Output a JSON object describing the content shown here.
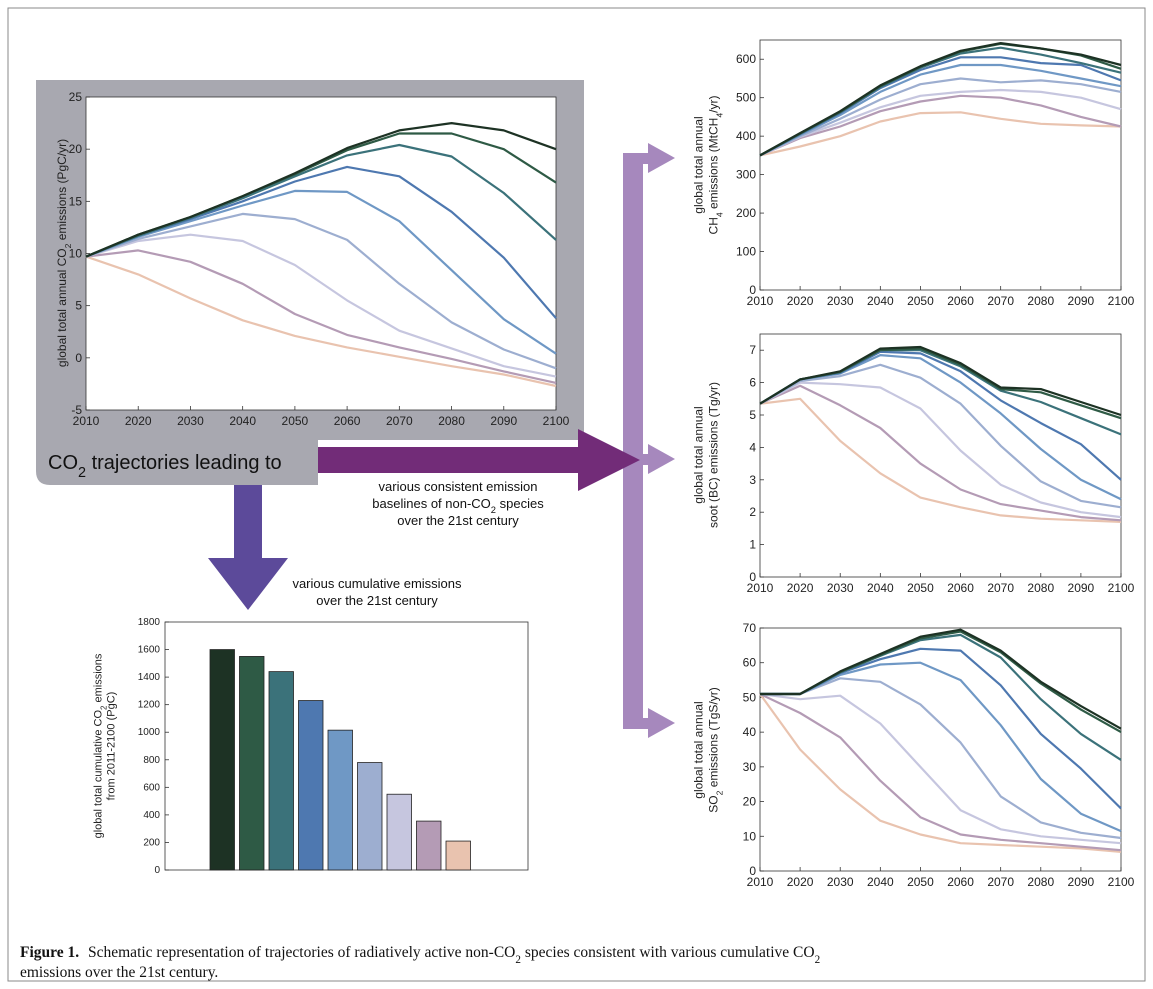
{
  "figure": {
    "caption_label": "Figure 1.",
    "caption_line1": "Schematic representation of trajectories of radiatively active non-CO2 species consistent with various cumulative CO2",
    "caption_line2": "emissions over the 21st century.",
    "box_label": "CO2 trajectories  leading to",
    "arrow_right_note": [
      "various consistent emission",
      "baselines of non-CO2 species",
      "over the 21st century"
    ],
    "arrow_down_note": [
      "various cumulative emissions",
      "over the 21st century"
    ]
  },
  "palette": [
    "#1d3224",
    "#2e5a45",
    "#3b727a",
    "#4e78b0",
    "#6f98c5",
    "#9daed0",
    "#c6c6df",
    "#b49bb5",
    "#e9c3af"
  ],
  "chart_data": [
    {
      "id": "co2",
      "type": "line",
      "ylabel": [
        "global total annual CO2 emissions (PgC/yr)"
      ],
      "x": [
        2010,
        2020,
        2030,
        2040,
        2050,
        2060,
        2070,
        2080,
        2090,
        2100
      ],
      "xticks": [
        2010,
        2020,
        2030,
        2040,
        2050,
        2060,
        2070,
        2080,
        2090,
        2100
      ],
      "yticks": [
        -5,
        0,
        5,
        10,
        15,
        20,
        25
      ],
      "ylim": [
        -5,
        25
      ],
      "series": [
        {
          "values": [
            9.7,
            11.8,
            13.5,
            15.5,
            17.7,
            20.1,
            21.8,
            22.5,
            21.8,
            20.0
          ]
        },
        {
          "values": [
            9.7,
            11.8,
            13.5,
            15.5,
            17.6,
            19.9,
            21.5,
            21.5,
            20.0,
            16.8
          ]
        },
        {
          "values": [
            9.7,
            11.7,
            13.4,
            15.3,
            17.4,
            19.4,
            20.4,
            19.3,
            15.8,
            11.3
          ]
        },
        {
          "values": [
            9.7,
            11.7,
            13.3,
            15.0,
            16.9,
            18.3,
            17.4,
            14.0,
            9.6,
            3.8
          ]
        },
        {
          "values": [
            9.7,
            11.6,
            13.1,
            14.6,
            16.0,
            15.9,
            13.1,
            8.4,
            3.7,
            0.4
          ]
        },
        {
          "values": [
            9.7,
            11.4,
            12.6,
            13.8,
            13.3,
            11.3,
            7.1,
            3.4,
            0.8,
            -1.0
          ]
        },
        {
          "values": [
            9.7,
            11.2,
            11.8,
            11.2,
            8.9,
            5.5,
            2.6,
            0.9,
            -0.8,
            -1.8
          ]
        },
        {
          "values": [
            9.7,
            10.3,
            9.2,
            7.1,
            4.2,
            2.2,
            1.0,
            -0.1,
            -1.3,
            -2.4
          ]
        },
        {
          "values": [
            9.7,
            8.0,
            5.7,
            3.6,
            2.1,
            1.0,
            0.1,
            -0.8,
            -1.6,
            -2.7
          ]
        }
      ]
    },
    {
      "id": "ch4",
      "type": "line",
      "ylabel": [
        "global total annual",
        "CH4 emissions (MtCH4/yr)"
      ],
      "x": [
        2010,
        2020,
        2030,
        2040,
        2050,
        2060,
        2070,
        2080,
        2090,
        2100
      ],
      "xticks": [
        2010,
        2020,
        2030,
        2040,
        2050,
        2060,
        2070,
        2080,
        2090,
        2100
      ],
      "yticks": [
        0,
        100,
        200,
        300,
        400,
        500,
        600
      ],
      "ylim": [
        0,
        650
      ],
      "series": [
        {
          "values": [
            350,
            408,
            465,
            532,
            582,
            622,
            642,
            628,
            612,
            585
          ]
        },
        {
          "values": [
            350,
            407,
            463,
            530,
            580,
            620,
            640,
            628,
            610,
            575
          ]
        },
        {
          "values": [
            350,
            406,
            462,
            528,
            578,
            615,
            630,
            612,
            590,
            565
          ]
        },
        {
          "values": [
            350,
            405,
            460,
            525,
            572,
            605,
            605,
            590,
            585,
            545
          ]
        },
        {
          "values": [
            350,
            403,
            455,
            515,
            560,
            585,
            585,
            570,
            550,
            530
          ]
        },
        {
          "values": [
            350,
            400,
            445,
            495,
            535,
            550,
            540,
            545,
            535,
            515
          ]
        },
        {
          "values": [
            350,
            398,
            435,
            475,
            505,
            515,
            520,
            515,
            500,
            470
          ]
        },
        {
          "values": [
            350,
            395,
            425,
            465,
            490,
            505,
            500,
            480,
            450,
            425
          ]
        },
        {
          "values": [
            350,
            373,
            400,
            438,
            460,
            462,
            445,
            432,
            428,
            425
          ]
        }
      ]
    },
    {
      "id": "bc",
      "type": "line",
      "ylabel": [
        "global total annual",
        "soot (BC) emissions (Tg/yr)"
      ],
      "x": [
        2010,
        2020,
        2030,
        2040,
        2050,
        2060,
        2070,
        2080,
        2090,
        2100
      ],
      "xticks": [
        2010,
        2020,
        2030,
        2040,
        2050,
        2060,
        2070,
        2080,
        2090,
        2100
      ],
      "yticks": [
        0,
        1,
        2,
        3,
        4,
        5,
        6,
        7
      ],
      "ylim": [
        0,
        7.5
      ],
      "series": [
        {
          "values": [
            5.35,
            6.1,
            6.35,
            7.05,
            7.1,
            6.6,
            5.85,
            5.8,
            5.4,
            5.0
          ]
        },
        {
          "values": [
            5.35,
            6.1,
            6.33,
            7.0,
            7.05,
            6.55,
            5.8,
            5.7,
            5.3,
            4.9
          ]
        },
        {
          "values": [
            5.35,
            6.1,
            6.32,
            7.0,
            7.0,
            6.5,
            5.75,
            5.4,
            4.9,
            4.4
          ]
        },
        {
          "values": [
            5.35,
            6.1,
            6.3,
            6.95,
            6.9,
            6.35,
            5.45,
            4.75,
            4.1,
            3.0
          ]
        },
        {
          "values": [
            5.35,
            6.1,
            6.28,
            6.85,
            6.75,
            6.0,
            5.05,
            3.95,
            3.0,
            2.4
          ]
        },
        {
          "values": [
            5.35,
            6.05,
            6.2,
            6.55,
            6.15,
            5.35,
            4.05,
            2.95,
            2.35,
            2.15
          ]
        },
        {
          "values": [
            5.35,
            6.0,
            5.95,
            5.85,
            5.2,
            3.9,
            2.85,
            2.3,
            2.0,
            1.85
          ]
        },
        {
          "values": [
            5.35,
            5.9,
            5.3,
            4.6,
            3.5,
            2.7,
            2.25,
            2.05,
            1.85,
            1.75
          ]
        },
        {
          "values": [
            5.35,
            5.5,
            4.2,
            3.2,
            2.45,
            2.15,
            1.9,
            1.8,
            1.75,
            1.7
          ]
        }
      ]
    },
    {
      "id": "so2",
      "type": "line",
      "ylabel": [
        "global total annual",
        "SO2 emissions (TgS/yr)"
      ],
      "x": [
        2010,
        2020,
        2030,
        2040,
        2050,
        2060,
        2070,
        2080,
        2090,
        2100
      ],
      "xticks": [
        2010,
        2020,
        2030,
        2040,
        2050,
        2060,
        2070,
        2080,
        2090,
        2100
      ],
      "yticks": [
        0,
        10,
        20,
        30,
        40,
        50,
        60,
        70
      ],
      "ylim": [
        0,
        70
      ],
      "series": [
        {
          "values": [
            51,
            51,
            57.5,
            62.5,
            67.5,
            69.5,
            63.5,
            54.5,
            47.5,
            41
          ]
        },
        {
          "values": [
            51,
            51,
            57.3,
            62.2,
            67.0,
            69.0,
            63.0,
            54.0,
            46.5,
            40
          ]
        },
        {
          "values": [
            51,
            51,
            57.2,
            62.0,
            66.5,
            68.0,
            61.5,
            49.5,
            39.5,
            32
          ]
        },
        {
          "values": [
            51,
            51,
            57.0,
            61.0,
            64.0,
            63.5,
            53.5,
            39.5,
            29.5,
            18
          ]
        },
        {
          "values": [
            51,
            51,
            56.5,
            59.5,
            60.0,
            55.0,
            42.0,
            26.5,
            16.5,
            11.5
          ]
        },
        {
          "values": [
            51,
            51,
            55.5,
            54.5,
            48.0,
            37.0,
            21.5,
            14.0,
            11.0,
            9.5
          ]
        },
        {
          "values": [
            51,
            49.5,
            50.5,
            42.5,
            30.0,
            17.5,
            12.0,
            10.0,
            9.0,
            8.0
          ]
        },
        {
          "values": [
            51,
            45.5,
            38.5,
            26.0,
            15.5,
            10.5,
            9.0,
            8.0,
            7.0,
            6.0
          ]
        },
        {
          "values": [
            51,
            35.0,
            23.5,
            14.5,
            10.5,
            8.0,
            7.5,
            7.0,
            6.5,
            5.5
          ]
        }
      ]
    },
    {
      "id": "cumulative",
      "type": "bar",
      "ylabel": [
        "global total cumulative CO2 emissions",
        "from 2011-2100 (PgC)"
      ],
      "yticks": [
        0,
        200,
        400,
        600,
        800,
        1000,
        1200,
        1400,
        1600,
        1800
      ],
      "ylim": [
        0,
        1800
      ],
      "values": [
        1600,
        1550,
        1440,
        1230,
        1015,
        780,
        550,
        355,
        210
      ]
    }
  ]
}
